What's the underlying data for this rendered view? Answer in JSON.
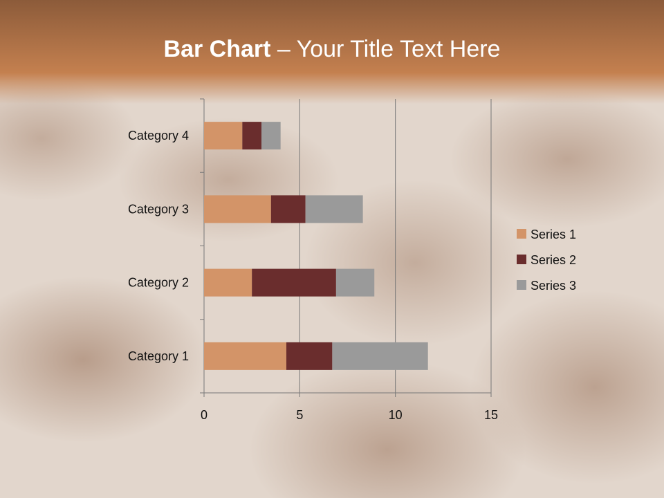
{
  "title": {
    "bold": "Bar Chart",
    "rest": " – Your Title Text Here"
  },
  "chart_data": {
    "type": "bar",
    "orientation": "horizontal",
    "stacked": true,
    "categories": [
      "Category 1",
      "Category 2",
      "Category 3",
      "Category 4"
    ],
    "series": [
      {
        "name": "Series 1",
        "values": [
          4.3,
          2.5,
          3.5,
          2
        ],
        "color": "#d39468"
      },
      {
        "name": "Series 2",
        "values": [
          2.4,
          4.4,
          1.8,
          1
        ],
        "color": "#6a2d2d"
      },
      {
        "name": "Series 3",
        "values": [
          5,
          2,
          3,
          1
        ],
        "color": "#9a9a9a"
      }
    ],
    "xlim": [
      0,
      15
    ],
    "xticks": [
      0,
      5,
      10,
      15
    ],
    "grid": true,
    "legend": "right"
  }
}
